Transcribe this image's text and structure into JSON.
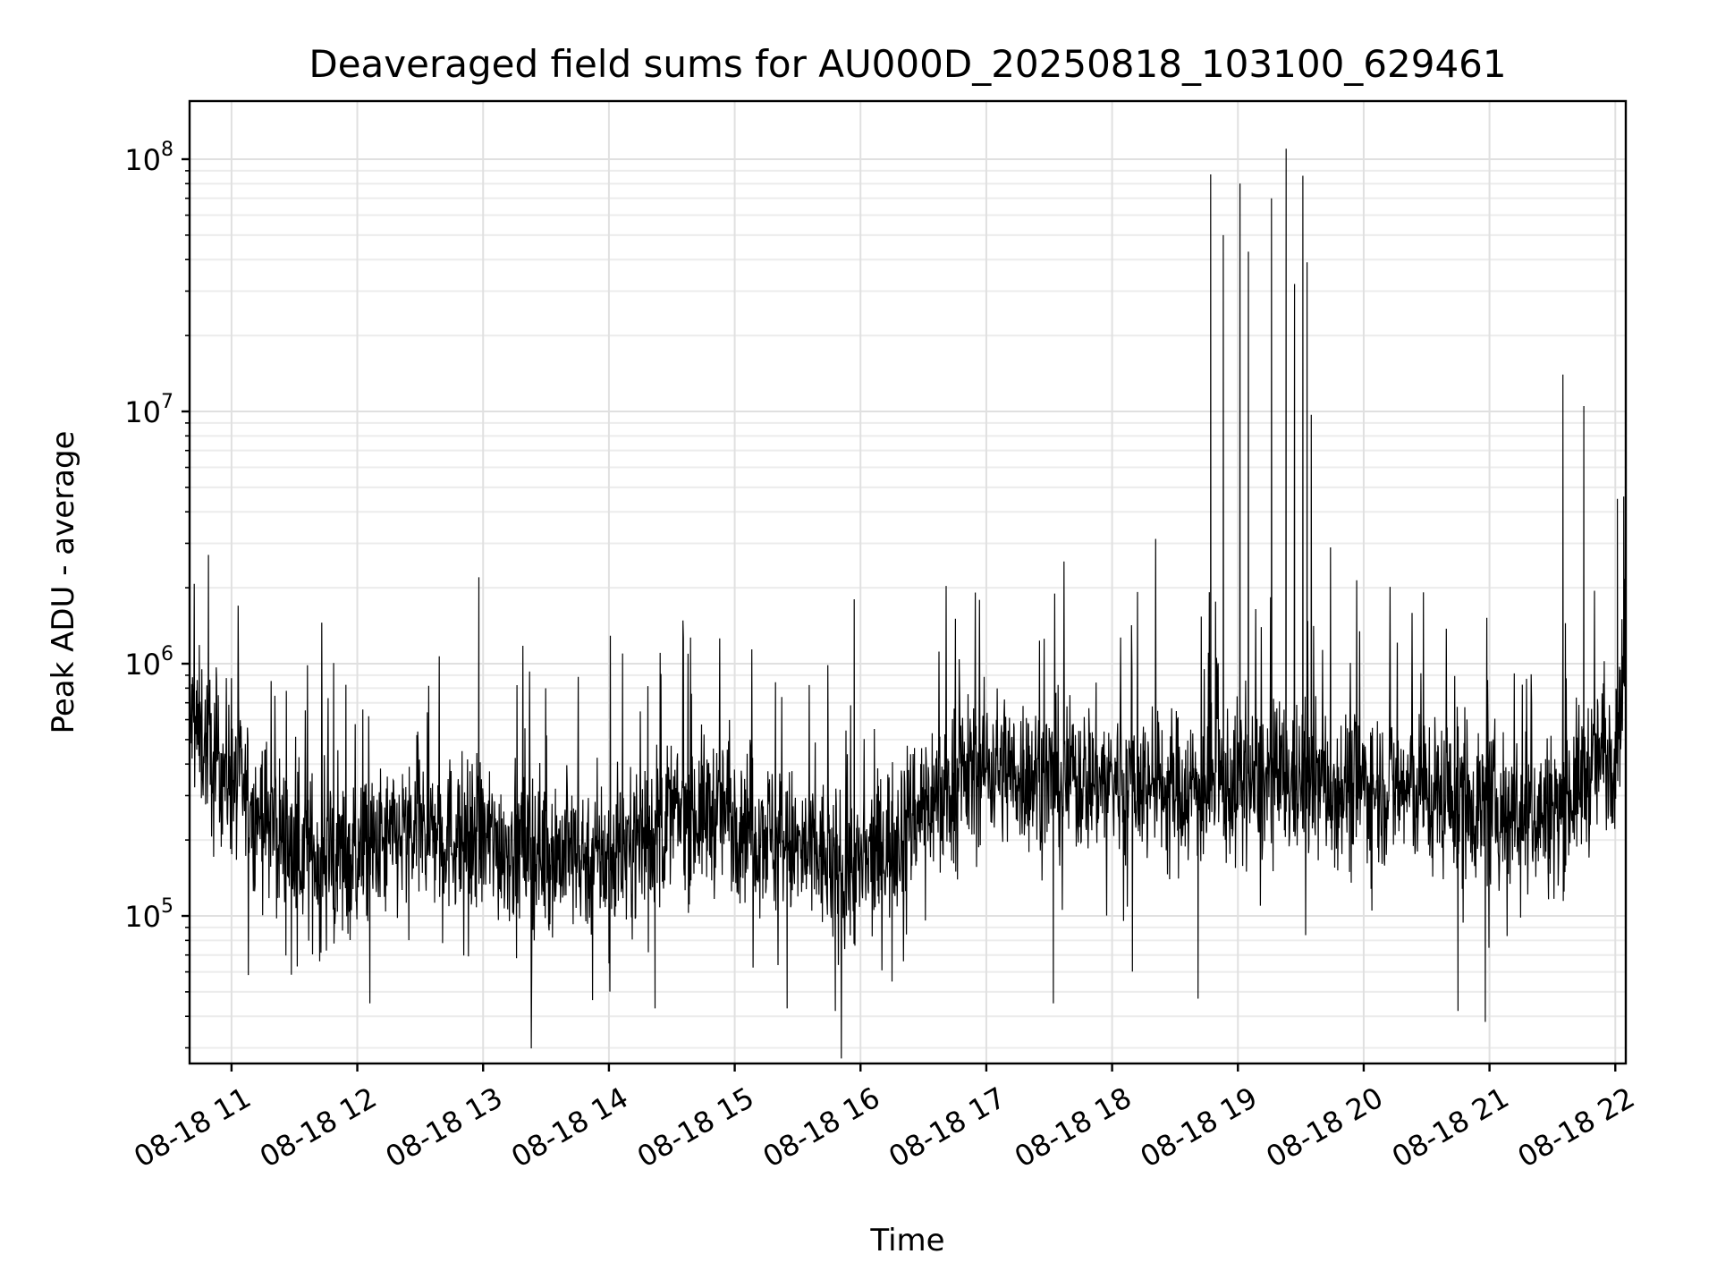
{
  "chart_data": {
    "type": "line",
    "title": "Deaveraged field sums for AU000D_20250818_103100_629461",
    "xlabel": "Time",
    "ylabel": "Peak ADU - average",
    "y_scale": "log",
    "ylim": [
      26000,
      170000000
    ],
    "xlim": [
      "2025-08-18T10:40",
      "2025-08-18T22:05"
    ],
    "x_tick_labels": [
      "08-18 11",
      "08-18 12",
      "08-18 13",
      "08-18 14",
      "08-18 15",
      "08-18 16",
      "08-18 17",
      "08-18 18",
      "08-18 19",
      "08-18 20",
      "08-18 21",
      "08-18 22"
    ],
    "x_ticks": [
      "2025-08-18T11:00",
      "2025-08-18T12:00",
      "2025-08-18T13:00",
      "2025-08-18T14:00",
      "2025-08-18T15:00",
      "2025-08-18T16:00",
      "2025-08-18T17:00",
      "2025-08-18T18:00",
      "2025-08-18T19:00",
      "2025-08-18T20:00",
      "2025-08-18T21:00",
      "2025-08-18T22:00"
    ],
    "y_ticks": [
      {
        "value": 100000,
        "base": "10",
        "exp": "5"
      },
      {
        "value": 1000000,
        "base": "10",
        "exp": "6"
      },
      {
        "value": 10000000,
        "base": "10",
        "exp": "7"
      },
      {
        "value": 100000000,
        "base": "10",
        "exp": "8"
      }
    ],
    "grid": true,
    "line_color": "#000000",
    "series": [
      {
        "x": [
          "2025-08-18T10:40",
          "2025-08-18T11:00",
          "2025-08-18T11:30",
          "2025-08-18T12:00",
          "2025-08-18T12:30",
          "2025-08-18T13:00",
          "2025-08-18T13:30",
          "2025-08-18T14:00",
          "2025-08-18T14:30",
          "2025-08-18T15:00",
          "2025-08-18T15:30",
          "2025-08-18T16:00",
          "2025-08-18T16:30",
          "2025-08-18T17:00",
          "2025-08-18T17:30",
          "2025-08-18T18:00",
          "2025-08-18T18:30",
          "2025-08-18T19:00",
          "2025-08-18T19:30",
          "2025-08-18T20:00",
          "2025-08-18T20:30",
          "2025-08-18T21:00",
          "2025-08-18T21:30",
          "2025-08-18T22:00",
          "2025-08-18T22:05"
        ],
        "values": [
          600000,
          350000,
          180000,
          170000,
          220000,
          200000,
          180000,
          170000,
          250000,
          260000,
          180000,
          150000,
          280000,
          400000,
          350000,
          350000,
          320000,
          330000,
          340000,
          330000,
          310000,
          270000,
          250000,
          500000,
          1100000
        ]
      }
    ],
    "spikes": [
      {
        "x": "2025-08-18T10:49",
        "value": 2700000
      },
      {
        "x": "2025-08-18T12:58",
        "value": 2200000
      },
      {
        "x": "2025-08-18T15:57",
        "value": 1800000
      },
      {
        "x": "2025-08-18T18:47",
        "value": 87000000
      },
      {
        "x": "2025-08-18T18:53",
        "value": 50000000
      },
      {
        "x": "2025-08-18T19:01",
        "value": 80000000
      },
      {
        "x": "2025-08-18T19:05",
        "value": 43000000
      },
      {
        "x": "2025-08-18T19:16",
        "value": 70000000
      },
      {
        "x": "2025-08-18T19:23",
        "value": 110000000
      },
      {
        "x": "2025-08-18T19:27",
        "value": 32000000
      },
      {
        "x": "2025-08-18T19:31",
        "value": 86000000
      },
      {
        "x": "2025-08-18T19:33",
        "value": 39000000
      },
      {
        "x": "2025-08-18T19:35",
        "value": 9700000
      },
      {
        "x": "2025-08-18T21:35",
        "value": 14000000
      },
      {
        "x": "2025-08-18T21:45",
        "value": 10500000
      },
      {
        "x": "2025-08-18T22:01",
        "value": 4500000
      },
      {
        "x": "2025-08-18T22:04",
        "value": 4600000
      }
    ],
    "dips": [
      {
        "x": "2025-08-18T12:06",
        "value": 45000
      },
      {
        "x": "2025-08-18T14:22",
        "value": 43000
      },
      {
        "x": "2025-08-18T15:25",
        "value": 43000
      },
      {
        "x": "2025-08-18T15:48",
        "value": 42000
      },
      {
        "x": "2025-08-18T17:32",
        "value": 45000
      },
      {
        "x": "2025-08-18T18:41",
        "value": 47000
      },
      {
        "x": "2025-08-18T20:45",
        "value": 42000
      },
      {
        "x": "2025-08-18T20:58",
        "value": 38000
      }
    ]
  }
}
